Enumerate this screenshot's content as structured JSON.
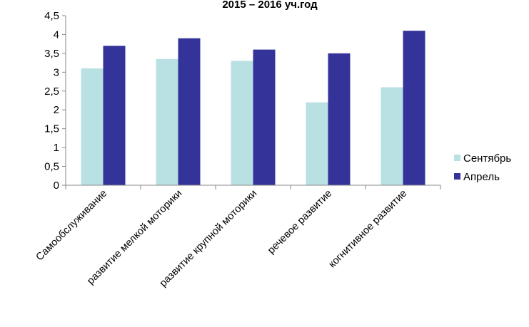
{
  "chart_data": {
    "type": "bar",
    "title": "2015 – 2016 уч.год",
    "xlabel": "",
    "ylabel": "",
    "ylim": [
      0,
      4.5
    ],
    "y_ticks": [
      "0",
      "0,5",
      "1",
      "1,5",
      "2",
      "2,5",
      "3",
      "3,5",
      "4",
      "4,5"
    ],
    "y_tick_values": [
      0,
      0.5,
      1,
      1.5,
      2,
      2.5,
      3,
      3.5,
      4,
      4.5
    ],
    "grid": false,
    "legend_position": "right",
    "categories": [
      "Самообслуживание",
      "развитие мелкой моторики",
      "развитие крупной моторики",
      "речевое развитие",
      "когнитивное развитие"
    ],
    "series": [
      {
        "name": "Сентябрь",
        "color": "#b9e0e3",
        "values": [
          3.1,
          3.35,
          3.3,
          2.2,
          2.6
        ]
      },
      {
        "name": "Апрель",
        "color": "#333399",
        "values": [
          3.7,
          3.9,
          3.6,
          3.5,
          4.1
        ]
      }
    ]
  }
}
